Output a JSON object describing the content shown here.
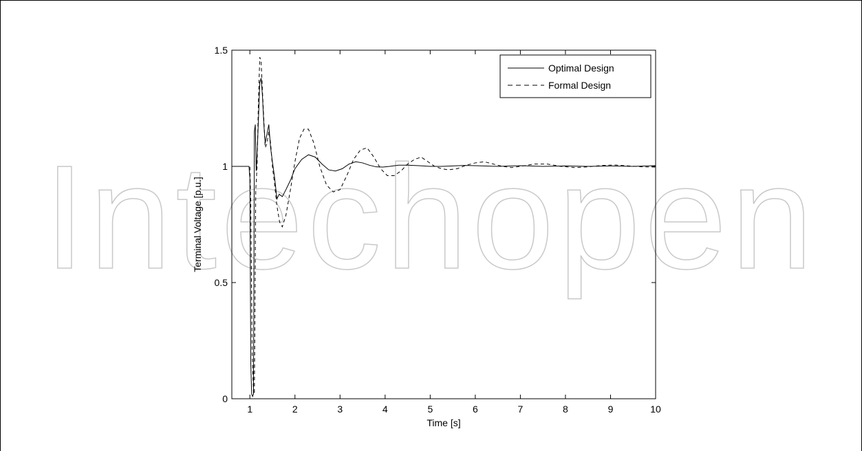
{
  "chart_data": {
    "type": "line",
    "title": "",
    "xlabel": "Time [s]",
    "ylabel": "Terminal Voltage [p.u.]",
    "xlim": [
      0.6,
      10
    ],
    "ylim": [
      0,
      1.5
    ],
    "xticks": [
      1,
      2,
      3,
      4,
      5,
      6,
      7,
      8,
      9,
      10
    ],
    "yticks": [
      0,
      0.5,
      1,
      1.5
    ],
    "xtick_labels": [
      "1",
      "2",
      "3",
      "4",
      "5",
      "6",
      "7",
      "8",
      "9",
      "10"
    ],
    "ytick_labels": [
      "0",
      "0.5",
      "1",
      "1.5"
    ],
    "grid": false,
    "legend_position": "top-right",
    "series": [
      {
        "name": "Optimal Design",
        "style": "solid",
        "color": "#000000",
        "x": [
          0.6,
          0.98,
          1.0,
          1.02,
          1.04,
          1.06,
          1.08,
          1.1,
          1.12,
          1.14,
          1.16,
          1.19,
          1.22,
          1.25,
          1.28,
          1.31,
          1.34,
          1.38,
          1.42,
          1.46,
          1.5,
          1.55,
          1.6,
          1.65,
          1.72,
          1.8,
          1.9,
          2.0,
          2.15,
          2.3,
          2.45,
          2.6,
          2.75,
          2.9,
          3.05,
          3.2,
          3.35,
          3.5,
          3.65,
          3.8,
          3.95,
          4.1,
          4.3,
          4.5,
          4.75,
          5.0,
          5.25,
          5.5,
          5.75,
          6.0,
          6.5,
          7.0,
          7.5,
          8.0,
          8.5,
          9.0,
          9.5,
          10.0
        ],
        "y": [
          1.0,
          1.0,
          0.95,
          0.15,
          0.02,
          0.01,
          0.02,
          1.15,
          1.18,
          0.98,
          1.05,
          1.2,
          1.36,
          1.38,
          1.3,
          1.18,
          1.1,
          1.14,
          1.18,
          1.08,
          1.02,
          0.95,
          0.86,
          0.88,
          0.87,
          0.9,
          0.94,
          0.99,
          1.03,
          1.05,
          1.04,
          1.01,
          0.985,
          0.98,
          0.99,
          1.01,
          1.02,
          1.015,
          1.005,
          0.998,
          0.997,
          1.0,
          1.005,
          1.005,
          1.003,
          1.0,
          1.0,
          1.002,
          1.004,
          1.003,
          1.0,
          1.003,
          1.0,
          1.002,
          1.0,
          1.002,
          1.0,
          1.003
        ]
      },
      {
        "name": "Formal Design",
        "style": "dashed",
        "color": "#000000",
        "x": [
          0.6,
          1.0,
          1.02,
          1.05,
          1.08,
          1.1,
          1.13,
          1.16,
          1.19,
          1.22,
          1.25,
          1.28,
          1.31,
          1.34,
          1.38,
          1.42,
          1.46,
          1.5,
          1.55,
          1.6,
          1.66,
          1.72,
          1.8,
          1.9,
          2.0,
          2.1,
          2.2,
          2.3,
          2.42,
          2.55,
          2.7,
          2.85,
          3.0,
          3.15,
          3.3,
          3.45,
          3.6,
          3.75,
          3.9,
          4.05,
          4.2,
          4.35,
          4.5,
          4.65,
          4.8,
          4.95,
          5.1,
          5.25,
          5.4,
          5.6,
          5.8,
          6.0,
          6.2,
          6.4,
          6.6,
          6.8,
          7.0,
          7.3,
          7.6,
          7.9,
          8.2,
          8.5,
          8.8,
          9.1,
          9.4,
          9.7,
          10.0
        ],
        "y": [
          1.0,
          1.0,
          0.85,
          0.2,
          0.03,
          0.02,
          0.9,
          1.0,
          1.28,
          1.47,
          1.45,
          1.32,
          1.2,
          1.08,
          1.1,
          1.15,
          1.1,
          1.0,
          0.92,
          0.83,
          0.76,
          0.74,
          0.79,
          0.9,
          1.02,
          1.12,
          1.16,
          1.16,
          1.1,
          1.0,
          0.92,
          0.89,
          0.9,
          0.96,
          1.03,
          1.07,
          1.08,
          1.04,
          0.99,
          0.96,
          0.96,
          0.98,
          1.01,
          1.03,
          1.04,
          1.02,
          1.0,
          0.99,
          0.985,
          0.99,
          1.005,
          1.015,
          1.02,
          1.01,
          1.0,
          0.995,
          1.0,
          1.01,
          1.01,
          1.0,
          0.995,
          0.998,
          1.004,
          1.006,
          1.002,
          0.998,
          0.997
        ]
      }
    ]
  },
  "watermark": {
    "letters": "Intechopen",
    "color": "#c8c8c8"
  }
}
